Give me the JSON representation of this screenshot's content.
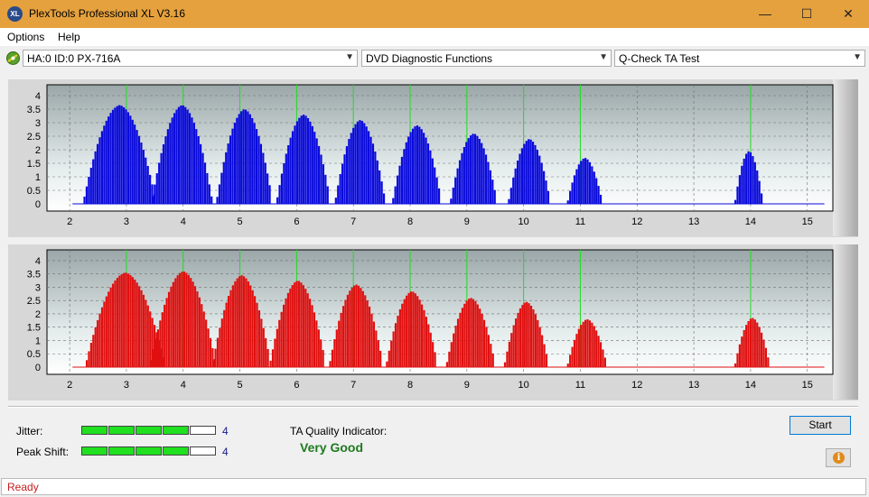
{
  "window": {
    "title": "PlexTools Professional XL V3.16",
    "icon_text": "XL",
    "minimize_glyph": "—",
    "maximize_glyph": "☐",
    "close_glyph": "✕"
  },
  "menu": {
    "items": [
      "Options",
      "Help"
    ]
  },
  "toolbar": {
    "drive": "HA:0 ID:0  PX-716A",
    "function": "DVD Diagnostic Functions",
    "test": "Q-Check TA Test"
  },
  "colors": {
    "titlebar": "#e5a13d",
    "chart_top_bars": "#0a0adc",
    "chart_bottom_bars": "#e01010",
    "marker_lines": "#22dd22",
    "quality_good": "#1f7a1f",
    "status_text": "#c62020"
  },
  "chart_data": [
    {
      "type": "bar",
      "name": "top-chart",
      "x_ticks": [
        "2",
        "3",
        "4",
        "5",
        "6",
        "7",
        "8",
        "9",
        "10",
        "11",
        "12",
        "13",
        "14",
        "15"
      ],
      "y_ticks": [
        "0",
        "0.5",
        "1",
        "1.5",
        "2",
        "2.5",
        "3",
        "3.5",
        "4"
      ],
      "xlim": [
        1.6,
        15.45
      ],
      "ylim": [
        0,
        4.2
      ],
      "marker_lines_x": [
        3,
        4,
        5,
        6,
        7,
        8,
        9,
        10,
        11,
        14
      ],
      "grid": true,
      "peaks": [
        {
          "center": 2.88,
          "height": 3.65,
          "half_width": 0.62
        },
        {
          "center": 3.98,
          "height": 3.65,
          "half_width": 0.52
        },
        {
          "center": 5.08,
          "height": 3.5,
          "half_width": 0.48
        },
        {
          "center": 6.12,
          "height": 3.3,
          "half_width": 0.46
        },
        {
          "center": 7.12,
          "height": 3.1,
          "half_width": 0.43
        },
        {
          "center": 8.12,
          "height": 2.9,
          "half_width": 0.42
        },
        {
          "center": 9.12,
          "height": 2.6,
          "half_width": 0.4
        },
        {
          "center": 10.1,
          "height": 2.4,
          "half_width": 0.36
        },
        {
          "center": 11.08,
          "height": 1.7,
          "half_width": 0.3
        },
        {
          "center": 13.97,
          "height": 1.95,
          "half_width": 0.24
        }
      ]
    },
    {
      "type": "bar",
      "name": "bottom-chart",
      "x_ticks": [
        "2",
        "3",
        "4",
        "5",
        "6",
        "7",
        "8",
        "9",
        "10",
        "11",
        "12",
        "13",
        "14",
        "15"
      ],
      "y_ticks": [
        "0",
        "0.5",
        "1",
        "1.5",
        "2",
        "2.5",
        "3",
        "3.5",
        "4"
      ],
      "xlim": [
        1.6,
        15.45
      ],
      "ylim": [
        0,
        4.2
      ],
      "marker_lines_x": [
        3,
        4,
        5,
        6,
        7,
        8,
        9,
        10,
        11,
        14
      ],
      "grid": true,
      "peaks": [
        {
          "center": 2.98,
          "height": 3.55,
          "half_width": 0.68
        },
        {
          "center": 4.0,
          "height": 3.6,
          "half_width": 0.56
        },
        {
          "center": 5.03,
          "height": 3.45,
          "half_width": 0.5
        },
        {
          "center": 6.02,
          "height": 3.25,
          "half_width": 0.48
        },
        {
          "center": 7.05,
          "height": 3.1,
          "half_width": 0.46
        },
        {
          "center": 8.03,
          "height": 2.85,
          "half_width": 0.44
        },
        {
          "center": 9.07,
          "height": 2.6,
          "half_width": 0.42
        },
        {
          "center": 10.05,
          "height": 2.45,
          "half_width": 0.38
        },
        {
          "center": 11.12,
          "height": 1.8,
          "half_width": 0.34
        },
        {
          "center": 14.03,
          "height": 1.85,
          "half_width": 0.3
        }
      ]
    }
  ],
  "results": {
    "jitter_label": "Jitter:",
    "jitter_value": "4",
    "jitter_level": 4,
    "peak_shift_label": "Peak Shift:",
    "peak_shift_value": "4",
    "peak_shift_level": 4,
    "meter_segments": 5,
    "ta_label": "TA Quality Indicator:",
    "ta_value": "Very Good"
  },
  "buttons": {
    "start": "Start",
    "info_glyph": "i"
  },
  "status": {
    "text": "Ready"
  }
}
